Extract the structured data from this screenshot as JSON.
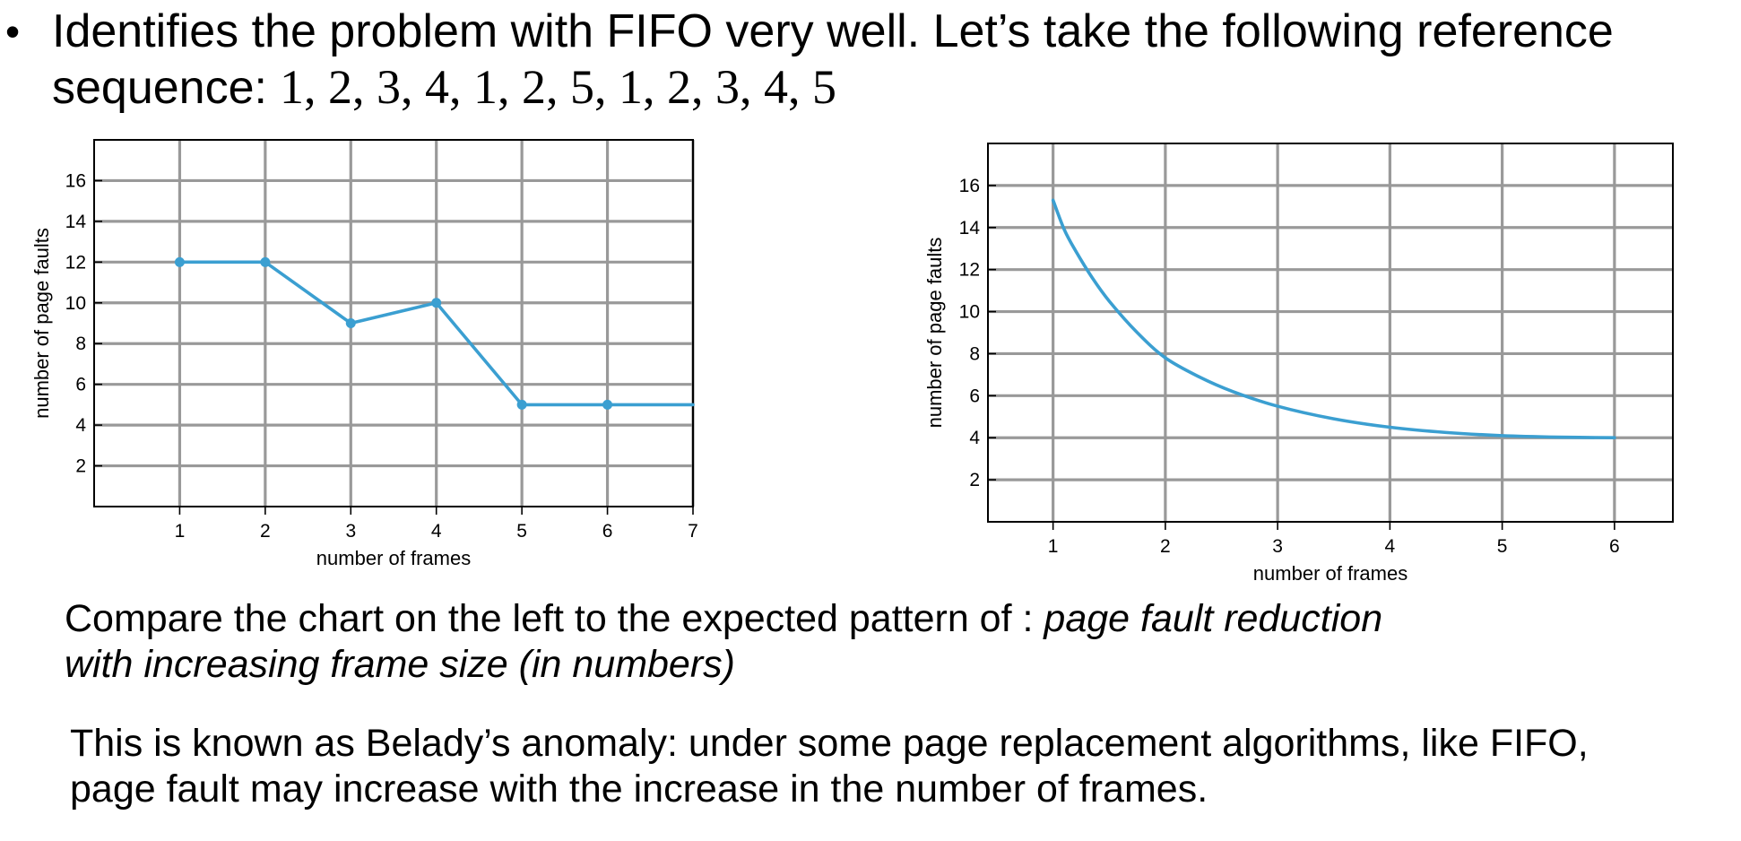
{
  "bullet": {
    "symbol": "•",
    "line1": "Identifies the problem with FIFO very well. Let’s take the following reference",
    "line2_prefix": "sequence:",
    "sequence": "1, 2, 3, 4, 1, 2, 5, 1, 2, 3, 4, 5"
  },
  "paragraph1": {
    "prefix": "Compare the chart on the left to the expected pattern of :",
    "italic_line1": "page fault reduction",
    "italic_line2": "with increasing frame size (in numbers)"
  },
  "paragraph2": {
    "line1": "This is known as Belady’s anomaly: under some page replacement algorithms, like FIFO,",
    "line2": "page fault may increase with the increase in the number of frames."
  },
  "colors": {
    "series": "#3b9fd1",
    "grid": "#999999",
    "axis": "#000000"
  },
  "chart_data": [
    {
      "type": "line",
      "xlabel": "number of frames",
      "ylabel": "number of page faults",
      "xlim": [
        0,
        7
      ],
      "ylim": [
        0,
        18
      ],
      "x_ticks": [
        "1",
        "2",
        "3",
        "4",
        "5",
        "6",
        "7"
      ],
      "y_ticks": [
        "2",
        "4",
        "6",
        "8",
        "10",
        "12",
        "14",
        "16"
      ],
      "grid": true,
      "series": [
        {
          "x": [
            1,
            2,
            3,
            4,
            5,
            6,
            7
          ],
          "y": [
            12,
            12,
            9,
            10,
            5,
            5,
            5
          ],
          "markers": [
            true,
            true,
            true,
            true,
            true,
            true,
            false
          ]
        }
      ]
    },
    {
      "type": "line",
      "xlabel": "number of frames",
      "ylabel": "number of page faults",
      "xlim": [
        0.42,
        6.52
      ],
      "ylim": [
        0,
        18
      ],
      "x_ticks": [
        "1",
        "2",
        "3",
        "4",
        "5",
        "6"
      ],
      "y_ticks": [
        "2",
        "4",
        "6",
        "8",
        "10",
        "12",
        "14",
        "16"
      ],
      "grid": true,
      "series": [
        {
          "x": [
            1.0,
            1.1,
            1.2,
            1.35,
            1.5,
            1.75,
            2.0,
            2.3,
            2.6,
            3.0,
            3.5,
            4.0,
            4.5,
            5.0,
            5.5,
            6.0
          ],
          "y": [
            15.3,
            13.9,
            12.9,
            11.6,
            10.5,
            9.0,
            7.8,
            6.9,
            6.2,
            5.5,
            4.9,
            4.5,
            4.25,
            4.1,
            4.03,
            4.0
          ]
        }
      ]
    }
  ]
}
